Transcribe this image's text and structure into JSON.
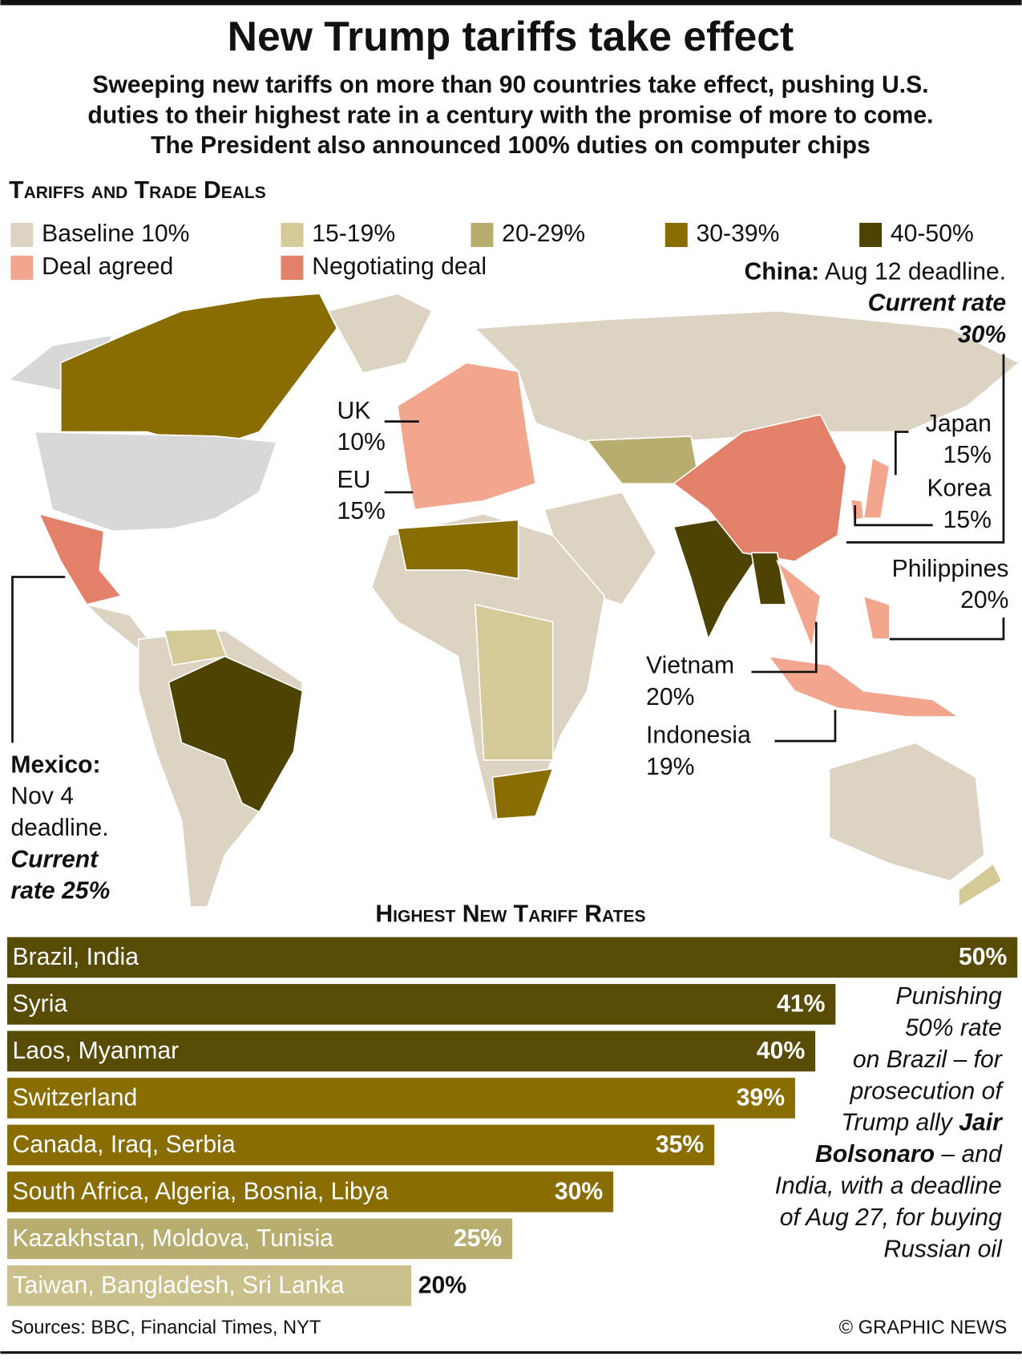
{
  "header": {
    "title": "New Trump tariffs take effect",
    "subtitle": [
      "Sweeping new tariffs on more than 90 countries take effect, pushing U.S.",
      "duties to their highest rate in a century with the promise of more to come.",
      "The President also announced 100% duties on computer chips"
    ]
  },
  "map": {
    "title": "Tariffs and Trade Deals",
    "legend": [
      {
        "label": "Baseline 10%",
        "color": "#ddd3c3"
      },
      {
        "label": "15-19%",
        "color": "#d3ca98"
      },
      {
        "label": "20-29%",
        "color": "#b7ad6e"
      },
      {
        "label": "30-39%",
        "color": "#8a6d00"
      },
      {
        "label": "40-50%",
        "color": "#4d4404"
      },
      {
        "label": "Deal agreed",
        "color": "#f1a68d"
      },
      {
        "label": "Negotiating deal",
        "color": "#e2806a"
      }
    ],
    "annotations": [
      {
        "lines": [
          [
            {
              "text": "China:",
              "style": "bold"
            },
            " Aug 12 deadline."
          ],
          [
            {
              "text": "Current rate",
              "style": "bold-italic"
            }
          ],
          [
            {
              "text": "30%",
              "style": "bold-italic"
            }
          ]
        ]
      },
      {
        "lines": [
          [
            "UK"
          ],
          [
            "10%"
          ]
        ]
      },
      {
        "lines": [
          [
            "EU"
          ],
          [
            "15%"
          ]
        ]
      },
      {
        "lines": [
          [
            "Japan"
          ],
          [
            "15%"
          ]
        ]
      },
      {
        "lines": [
          [
            "Korea"
          ],
          [
            "15%"
          ]
        ]
      },
      {
        "lines": [
          [
            "Philippines"
          ],
          [
            "20%"
          ]
        ]
      },
      {
        "lines": [
          [
            "Vietnam"
          ],
          [
            "20%"
          ]
        ]
      },
      {
        "lines": [
          [
            "Indonesia"
          ],
          [
            "19%"
          ]
        ]
      },
      {
        "lines": [
          [
            {
              "text": "Mexico:",
              "style": "bold"
            }
          ],
          [
            "Nov 4"
          ],
          [
            "deadline."
          ],
          [
            {
              "text": "Current",
              "style": "bold-italic"
            }
          ],
          [
            {
              "text": "rate 25%",
              "style": "bold-italic"
            }
          ]
        ]
      }
    ]
  },
  "chart_data": {
    "type": "bar",
    "orientation": "horizontal",
    "title": "Highest New Tariff Rates",
    "categories": [
      "Brazil, India",
      "Syria",
      "Laos, Myanmar",
      "Switzerland",
      "Canada, Iraq, Serbia",
      "South Africa, Algeria, Bosnia, Libya",
      "Kazakhstan, Moldova, Tunisia",
      "Taiwan, Bangladesh, Sri Lanka"
    ],
    "values": [
      50,
      41,
      40,
      39,
      35,
      30,
      25,
      20
    ],
    "value_labels": [
      "50%",
      "41%",
      "40%",
      "39%",
      "35%",
      "30%",
      "25%",
      "20%"
    ],
    "colors": [
      "#574b05",
      "#574b05",
      "#574b05",
      "#8a6d00",
      "#8a6d00",
      "#8a6d00",
      "#b7ad6e",
      "#c9c08c"
    ],
    "xlim": [
      0,
      50
    ]
  },
  "note": {
    "lines": [
      [
        "Punishing"
      ],
      [
        "50% rate"
      ],
      [
        "on Brazil – for"
      ],
      [
        "prosecution of"
      ],
      [
        "Trump ally ",
        {
          "text": "Jair",
          "style": "bold"
        }
      ],
      [
        {
          "text": "Bolsonaro",
          "style": "bold"
        },
        " – and"
      ],
      [
        "India, with a deadline"
      ],
      [
        "of Aug 27, for buying"
      ],
      [
        "Russian oil"
      ]
    ]
  },
  "footer": {
    "source": "Sources: BBC, Financial Times, NYT",
    "credit": "© GRAPHIC NEWS"
  }
}
